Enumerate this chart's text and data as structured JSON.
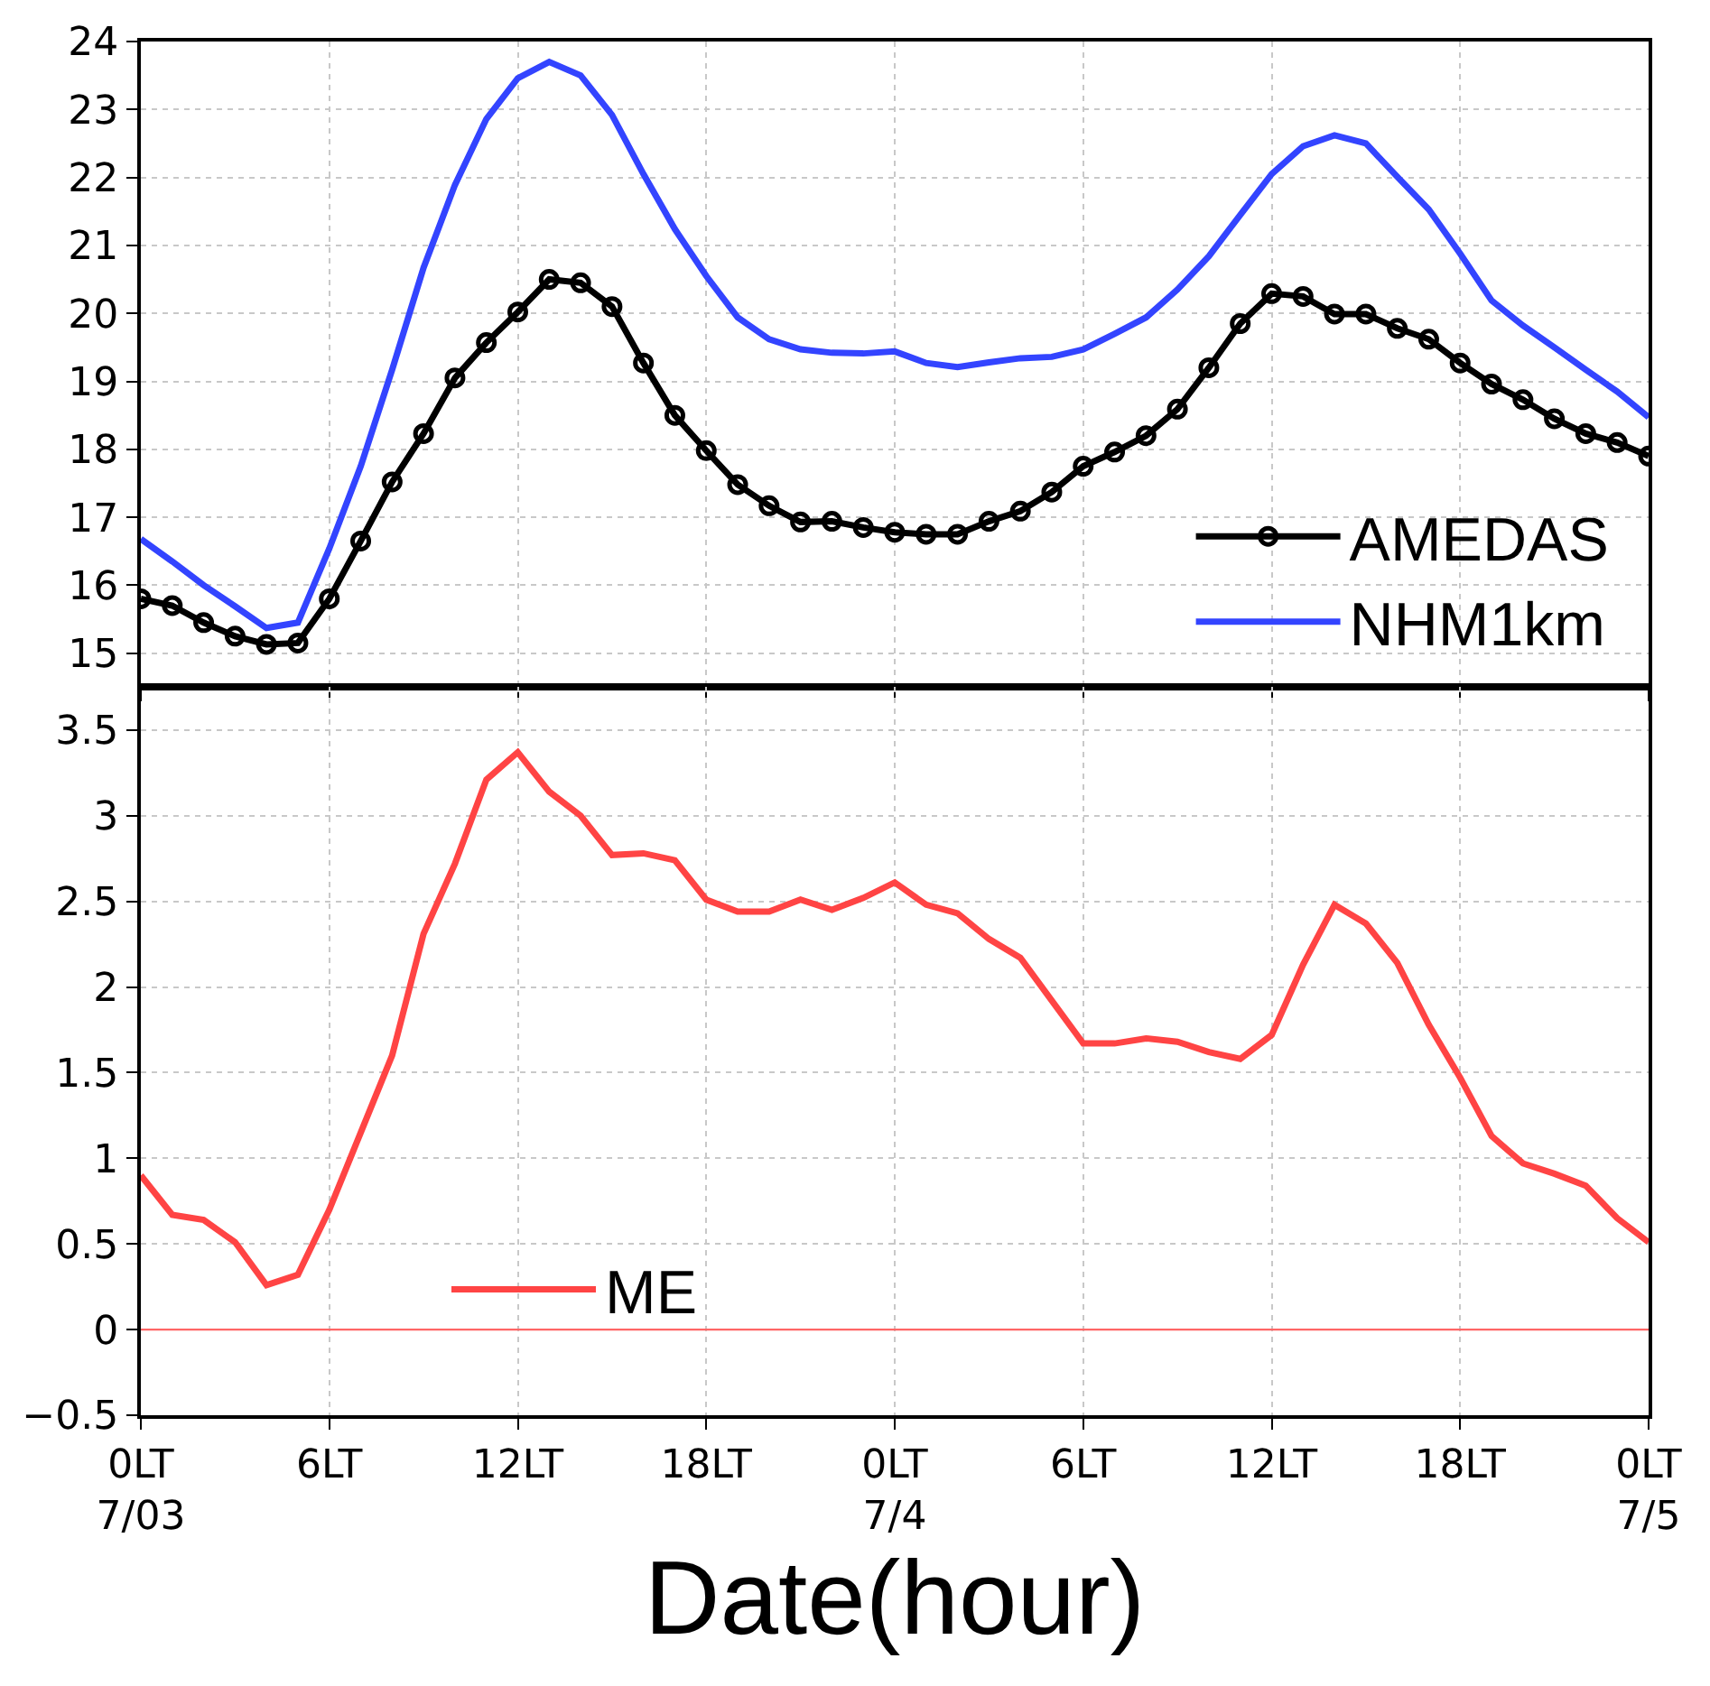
{
  "chart_data": [
    {
      "type": "line",
      "x": [
        "--07-03T00:00",
        "--07-03T01:00",
        "--07-03T02:00",
        "--07-03T03:00",
        "--07-03T04:00",
        "--07-03T05:00",
        "--07-03T06:00",
        "--07-03T07:00",
        "--07-03T08:00",
        "--07-03T09:00",
        "--07-03T10:00",
        "--07-03T11:00",
        "--07-03T12:00",
        "--07-03T13:00",
        "--07-03T14:00",
        "--07-03T15:00",
        "--07-03T16:00",
        "--07-03T17:00",
        "--07-03T18:00",
        "--07-03T19:00",
        "--07-03T20:00",
        "--07-03T21:00",
        "--07-03T22:00",
        "--07-03T23:00",
        "--07-04T00:00",
        "--07-04T01:00",
        "--07-04T02:00",
        "--07-04T03:00",
        "--07-04T04:00",
        "--07-04T05:00",
        "--07-04T06:00",
        "--07-04T07:00",
        "--07-04T08:00",
        "--07-04T09:00",
        "--07-04T10:00",
        "--07-04T11:00",
        "--07-04T12:00",
        "--07-04T13:00",
        "--07-04T14:00",
        "--07-04T15:00",
        "--07-04T16:00",
        "--07-04T17:00",
        "--07-04T18:00",
        "--07-04T19:00",
        "--07-04T20:00",
        "--07-04T21:00",
        "--07-04T22:00",
        "--07-04T23:00",
        "--07-05T00:00"
      ],
      "series": [
        {
          "name": "AMEDAS",
          "color": "#000000",
          "marker": "circle",
          "values": [
            15.8,
            15.7,
            15.45,
            15.25,
            15.13,
            15.15,
            15.8,
            16.65,
            17.52,
            18.23,
            19.05,
            19.57,
            20.02,
            20.5,
            20.45,
            20.1,
            19.27,
            18.5,
            17.98,
            17.48,
            17.17,
            16.93,
            16.94,
            16.85,
            16.78,
            16.75,
            16.75,
            16.94,
            17.09,
            17.37,
            17.75,
            17.96,
            18.2,
            18.59,
            19.2,
            19.85,
            20.29,
            20.25,
            19.99,
            19.99,
            19.78,
            19.62,
            19.27,
            18.96,
            18.73,
            18.45,
            18.23,
            18.1,
            17.9
          ]
        },
        {
          "name": "NHM1km",
          "color": "#3344ff",
          "values": [
            16.68,
            16.35,
            16.0,
            15.69,
            15.37,
            15.45,
            16.54,
            17.75,
            19.17,
            20.67,
            21.89,
            22.86,
            23.46,
            23.7,
            23.5,
            22.92,
            22.05,
            21.24,
            20.55,
            19.94,
            19.62,
            19.47,
            19.42,
            19.41,
            19.44,
            19.27,
            19.21,
            19.28,
            19.34,
            19.36,
            19.47,
            19.7,
            19.94,
            20.35,
            20.84,
            21.45,
            22.05,
            22.46,
            22.62,
            22.5,
            22.01,
            21.53,
            20.88,
            20.19,
            19.82,
            19.5,
            19.17,
            18.85,
            18.47
          ]
        }
      ],
      "xlim": [
        "--07-03T00:00",
        "--07-05T00:00"
      ],
      "xticks": [
        {
          "value": "--07-03T00:00",
          "label": null
        },
        {
          "value": "--07-03T06:00",
          "label": null
        },
        {
          "value": "--07-03T12:00",
          "label": null
        },
        {
          "value": "--07-03T18:00",
          "label": null
        },
        {
          "value": "--07-04T00:00",
          "label": null
        },
        {
          "value": "--07-04T06:00",
          "label": null
        },
        {
          "value": "--07-04T12:00",
          "label": null
        },
        {
          "value": "--07-04T18:00",
          "label": null
        },
        {
          "value": "--07-05T00:00",
          "label": null
        }
      ],
      "ylim": [
        14.5,
        24
      ],
      "yticks": [
        15,
        16,
        17,
        18,
        19,
        20,
        21,
        22,
        23,
        24
      ],
      "grid": true,
      "legend": "bottom right",
      "tick_labels": "y"
    },
    {
      "type": "line",
      "x": [
        "--07-03T00:00",
        "--07-03T01:00",
        "--07-03T02:00",
        "--07-03T03:00",
        "--07-03T04:00",
        "--07-03T05:00",
        "--07-03T06:00",
        "--07-03T07:00",
        "--07-03T08:00",
        "--07-03T09:00",
        "--07-03T10:00",
        "--07-03T11:00",
        "--07-03T12:00",
        "--07-03T13:00",
        "--07-03T14:00",
        "--07-03T15:00",
        "--07-03T16:00",
        "--07-03T17:00",
        "--07-03T18:00",
        "--07-03T19:00",
        "--07-03T20:00",
        "--07-03T21:00",
        "--07-03T22:00",
        "--07-03T23:00",
        "--07-04T00:00",
        "--07-04T01:00",
        "--07-04T02:00",
        "--07-04T03:00",
        "--07-04T04:00",
        "--07-04T05:00",
        "--07-04T06:00",
        "--07-04T07:00",
        "--07-04T08:00",
        "--07-04T09:00",
        "--07-04T10:00",
        "--07-04T11:00",
        "--07-04T12:00",
        "--07-04T13:00",
        "--07-04T14:00",
        "--07-04T15:00",
        "--07-04T16:00",
        "--07-04T17:00",
        "--07-04T18:00",
        "--07-04T19:00",
        "--07-04T20:00",
        "--07-04T21:00",
        "--07-04T22:00",
        "--07-04T23:00",
        "--07-05T00:00"
      ],
      "series": [
        {
          "name": "ME",
          "color": "#ff4444",
          "values": [
            0.9,
            0.67,
            0.64,
            0.51,
            0.26,
            0.32,
            0.7,
            1.15,
            1.6,
            2.31,
            2.72,
            3.21,
            3.37,
            3.14,
            3.0,
            2.77,
            2.78,
            2.74,
            2.51,
            2.44,
            2.44,
            2.51,
            2.45,
            2.52,
            2.61,
            2.48,
            2.43,
            2.28,
            2.17,
            1.92,
            1.67,
            1.67,
            1.7,
            1.68,
            1.62,
            1.58,
            1.72,
            2.13,
            2.48,
            2.37,
            2.14,
            1.78,
            1.47,
            1.13,
            0.97,
            0.91,
            0.84,
            0.65,
            0.51
          ]
        }
      ],
      "xlim": [
        "--07-03T00:00",
        "--07-05T00:00"
      ],
      "xticks": [
        {
          "value": "--07-03T00:00",
          "label": "0LT\n7/03"
        },
        {
          "value": "--07-03T06:00",
          "label": "6LT"
        },
        {
          "value": "--07-03T12:00",
          "label": "12LT"
        },
        {
          "value": "--07-03T18:00",
          "label": "18LT"
        },
        {
          "value": "--07-04T00:00",
          "label": "0LT\n7/4"
        },
        {
          "value": "--07-04T06:00",
          "label": "6LT"
        },
        {
          "value": "--07-04T12:00",
          "label": "12LT"
        },
        {
          "value": "--07-04T18:00",
          "label": "18LT"
        },
        {
          "value": "--07-05T00:00",
          "label": "0LT\n7/5"
        }
      ],
      "ylim": [
        -0.5,
        3.75
      ],
      "yticks": [
        -0.5,
        0,
        0.5,
        1,
        1.5,
        2,
        2.5,
        3,
        3.5
      ],
      "xlabel": "Date(hour)",
      "ref_lines": [
        {
          "axis": "y",
          "value": 0,
          "color": "#ff6666"
        }
      ],
      "grid": true,
      "legend": "bottom left"
    }
  ]
}
